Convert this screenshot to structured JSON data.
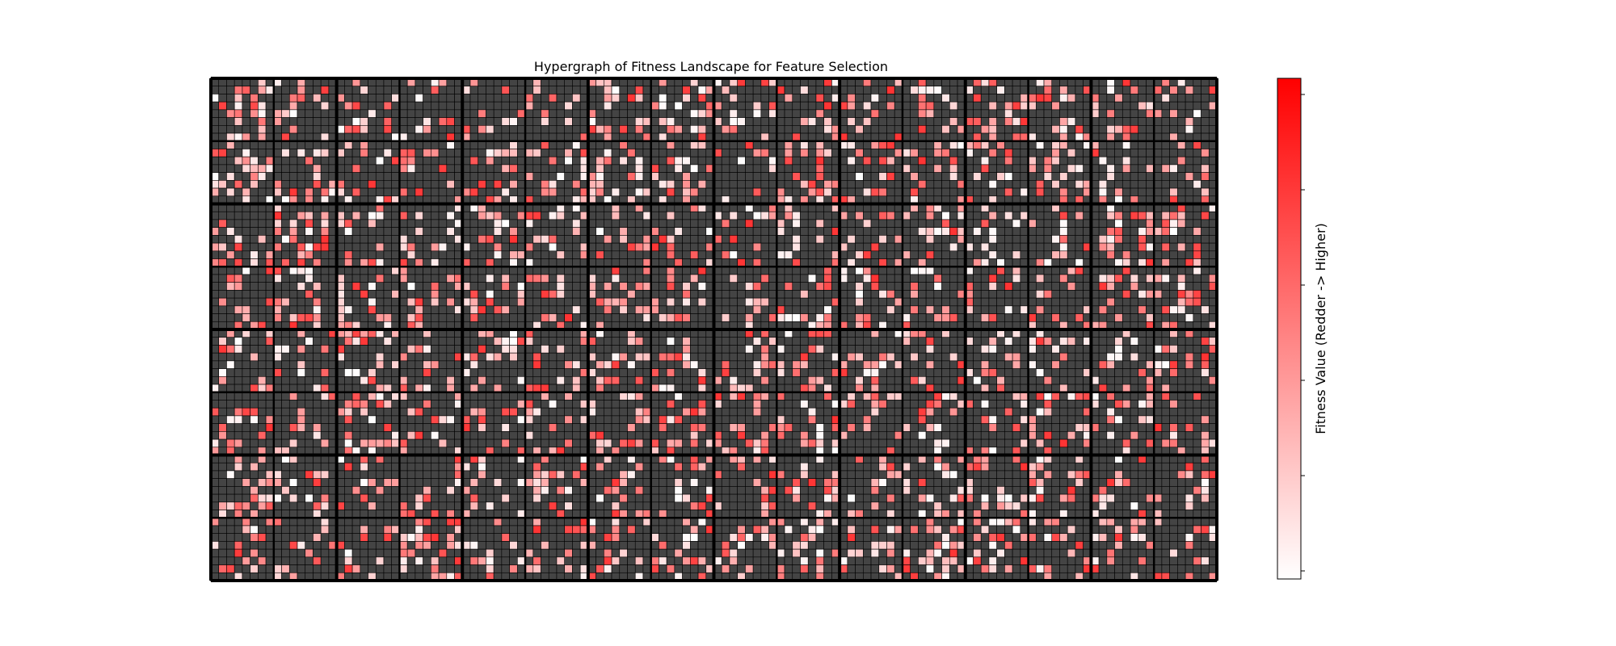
{
  "chart_data": {
    "type": "heatmap",
    "title": "Hypergraph of Fitness Landscape for Feature Selection",
    "colorbar_label": "Fitness Value (Redder -> Higher)",
    "grid": {
      "rows": 64,
      "cols": 128,
      "block_size": 8,
      "block_rows": 8,
      "block_cols": 16
    },
    "colors": {
      "background_cell": "#444444",
      "cell_edge": "#000000",
      "colormap_low": "#ffffff",
      "colormap_high": "#ff0000"
    },
    "value_range": [
      0,
      1
    ],
    "highlight_density": 0.28,
    "xticks": false,
    "yticks": false,
    "colorbar_ticks": 6,
    "colorbar_position": "right"
  }
}
